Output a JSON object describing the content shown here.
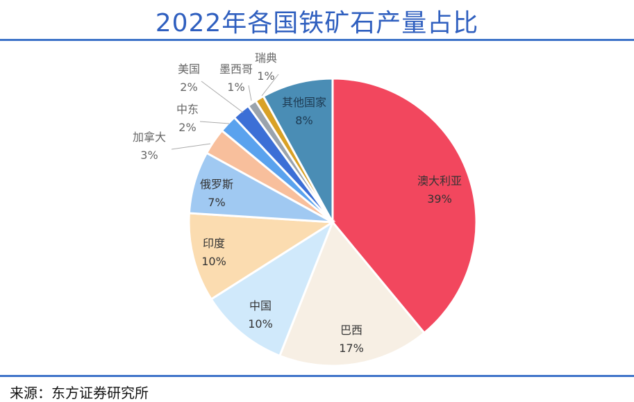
{
  "title": "2022年各国铁矿石产量占比",
  "source": "来源：东方证券研究所",
  "chart_data": {
    "type": "pie",
    "title": "2022年各国铁矿石产量占比",
    "unit": "%",
    "slices": [
      {
        "label": "澳大利亚",
        "value": 39,
        "color": "#f2475e"
      },
      {
        "label": "巴西",
        "value": 17,
        "color": "#f7efe4"
      },
      {
        "label": "中国",
        "value": 10,
        "color": "#d0e9fb"
      },
      {
        "label": "印度",
        "value": 10,
        "color": "#fbdcb0"
      },
      {
        "label": "俄罗斯",
        "value": 7,
        "color": "#a0c9f2"
      },
      {
        "label": "加拿大",
        "value": 3,
        "color": "#f8bf9c"
      },
      {
        "label": "中东",
        "value": 2,
        "color": "#5aa2ee"
      },
      {
        "label": "美国",
        "value": 2,
        "color": "#3c6fd6"
      },
      {
        "label": "墨西哥",
        "value": 1,
        "color": "#9aa3ad"
      },
      {
        "label": "瑞典",
        "value": 1,
        "color": "#d9a126"
      },
      {
        "label": "其他国家",
        "value": 8,
        "color": "#4a8db5"
      }
    ],
    "start_angle": "12 o'clock",
    "direction": "clockwise",
    "legend": "none"
  }
}
